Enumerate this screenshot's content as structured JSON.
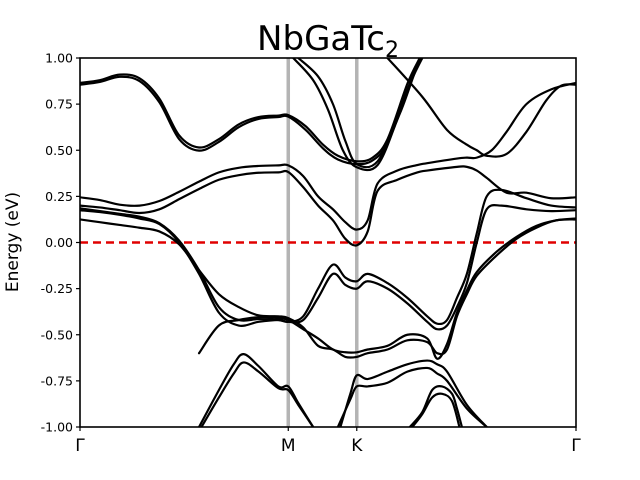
{
  "chart_data": {
    "type": "line",
    "title_main": "NbGaTc",
    "title_sub": "2",
    "xlabel": "",
    "ylabel": "Energy (eV)",
    "ylim": [
      -1.0,
      1.0
    ],
    "xlim": [
      0,
      1
    ],
    "ytick_labels": [
      "1.00",
      "0.75",
      "0.50",
      "0.25",
      "0.00",
      "-0.25",
      "-0.50",
      "-0.75",
      "-1.00"
    ],
    "ytick_values": [
      1.0,
      0.75,
      0.5,
      0.25,
      0.0,
      -0.25,
      -0.5,
      -0.75,
      -1.0
    ],
    "high_symmetry_points": [
      {
        "label": "Γ",
        "x": 0.0
      },
      {
        "label": "M",
        "x": 0.4199
      },
      {
        "label": "K",
        "x": 0.558
      },
      {
        "label": "Γ",
        "x": 1.0
      }
    ],
    "fermi_level": 0.0,
    "colors": {
      "bands": "#000000",
      "fermi": "#e00000",
      "kpath_lines": "#b4b4b4"
    },
    "series": [
      {
        "values": [
          [
            0.0,
            0.855
          ],
          [
            0.04,
            0.87
          ],
          [
            0.08,
            0.898
          ],
          [
            0.12,
            0.875
          ],
          [
            0.16,
            0.76
          ],
          [
            0.2,
            0.56
          ],
          [
            0.24,
            0.498
          ],
          [
            0.28,
            0.545
          ],
          [
            0.32,
            0.625
          ],
          [
            0.36,
            0.67
          ],
          [
            0.4,
            0.68
          ],
          [
            0.42,
            0.682
          ],
          [
            0.455,
            0.61
          ],
          [
            0.49,
            0.51
          ],
          [
            0.52,
            0.45
          ],
          [
            0.558,
            0.425
          ],
          [
            0.59,
            0.445
          ],
          [
            0.62,
            0.54
          ],
          [
            0.66,
            0.83
          ],
          [
            0.69,
            1.0
          ]
        ]
      },
      {
        "values": [
          [
            0.0,
            0.865
          ],
          [
            0.04,
            0.88
          ],
          [
            0.08,
            0.91
          ],
          [
            0.12,
            0.89
          ],
          [
            0.16,
            0.78
          ],
          [
            0.2,
            0.58
          ],
          [
            0.24,
            0.515
          ],
          [
            0.28,
            0.56
          ],
          [
            0.32,
            0.64
          ],
          [
            0.36,
            0.68
          ],
          [
            0.4,
            0.688
          ],
          [
            0.42,
            0.69
          ],
          [
            0.455,
            0.63
          ],
          [
            0.49,
            0.53
          ],
          [
            0.52,
            0.47
          ],
          [
            0.558,
            0.44
          ],
          [
            0.59,
            0.46
          ],
          [
            0.62,
            0.56
          ],
          [
            0.66,
            0.86
          ],
          [
            0.685,
            1.0
          ]
        ]
      },
      {
        "values": [
          [
            0.43,
            1.0
          ],
          [
            0.47,
            0.88
          ],
          [
            0.5,
            0.72
          ],
          [
            0.53,
            0.5
          ],
          [
            0.558,
            0.408
          ],
          [
            0.6,
            0.42
          ],
          [
            0.64,
            0.67
          ],
          [
            0.67,
            0.9
          ],
          [
            0.685,
            1.0
          ]
        ]
      },
      {
        "values": [
          [
            0.44,
            1.0
          ],
          [
            0.48,
            0.9
          ],
          [
            0.51,
            0.75
          ],
          [
            0.535,
            0.55
          ],
          [
            0.558,
            0.425
          ],
          [
            0.6,
            0.44
          ],
          [
            0.645,
            0.7
          ],
          [
            0.675,
            0.92
          ],
          [
            0.69,
            1.0
          ]
        ]
      },
      {
        "values": [
          [
            0.62,
            1.0
          ],
          [
            0.69,
            0.79
          ],
          [
            0.74,
            0.61
          ],
          [
            0.78,
            0.53
          ],
          [
            0.8,
            0.5
          ],
          [
            0.82,
            0.47
          ],
          [
            0.86,
            0.48
          ],
          [
            0.9,
            0.6
          ],
          [
            0.94,
            0.77
          ],
          [
            0.97,
            0.85
          ],
          [
            1.0,
            0.855
          ]
        ]
      },
      {
        "values": [
          [
            0.0,
            0.245
          ],
          [
            0.04,
            0.23
          ],
          [
            0.08,
            0.205
          ],
          [
            0.12,
            0.2
          ],
          [
            0.16,
            0.225
          ],
          [
            0.2,
            0.275
          ],
          [
            0.24,
            0.33
          ],
          [
            0.28,
            0.38
          ],
          [
            0.32,
            0.405
          ],
          [
            0.36,
            0.415
          ],
          [
            0.4,
            0.418
          ],
          [
            0.42,
            0.418
          ],
          [
            0.45,
            0.36
          ],
          [
            0.48,
            0.25
          ],
          [
            0.51,
            0.18
          ],
          [
            0.535,
            0.11
          ],
          [
            0.558,
            0.07
          ],
          [
            0.58,
            0.12
          ],
          [
            0.6,
            0.32
          ],
          [
            0.64,
            0.39
          ],
          [
            0.68,
            0.42
          ],
          [
            0.7,
            0.43
          ],
          [
            0.76,
            0.455
          ],
          [
            0.78,
            0.46
          ],
          [
            0.8,
            0.46
          ],
          [
            0.83,
            0.5
          ],
          [
            0.86,
            0.6
          ],
          [
            0.9,
            0.75
          ],
          [
            0.95,
            0.83
          ],
          [
            1.0,
            0.865
          ]
        ]
      },
      {
        "values": [
          [
            0.0,
            0.2
          ],
          [
            0.04,
            0.19
          ],
          [
            0.08,
            0.175
          ],
          [
            0.12,
            0.16
          ],
          [
            0.16,
            0.18
          ],
          [
            0.2,
            0.235
          ],
          [
            0.24,
            0.29
          ],
          [
            0.28,
            0.34
          ],
          [
            0.32,
            0.365
          ],
          [
            0.36,
            0.378
          ],
          [
            0.4,
            0.38
          ],
          [
            0.42,
            0.382
          ],
          [
            0.45,
            0.3
          ],
          [
            0.48,
            0.2
          ],
          [
            0.51,
            0.12
          ],
          [
            0.535,
            0.02
          ],
          [
            0.558,
            -0.015
          ],
          [
            0.58,
            0.06
          ],
          [
            0.6,
            0.28
          ],
          [
            0.64,
            0.34
          ],
          [
            0.68,
            0.38
          ],
          [
            0.7,
            0.39
          ],
          [
            0.76,
            0.41
          ],
          [
            0.78,
            0.41
          ],
          [
            0.8,
            0.39
          ],
          [
            0.82,
            0.35
          ],
          [
            0.86,
            0.27
          ],
          [
            0.9,
            0.27
          ],
          [
            0.95,
            0.24
          ],
          [
            1.0,
            0.245
          ]
        ]
      },
      {
        "values": [
          [
            0.0,
            0.185
          ],
          [
            0.04,
            0.17
          ],
          [
            0.08,
            0.155
          ],
          [
            0.12,
            0.14
          ],
          [
            0.16,
            0.105
          ],
          [
            0.2,
            0.01
          ],
          [
            0.24,
            -0.15
          ],
          [
            0.28,
            -0.35
          ],
          [
            0.32,
            -0.42
          ],
          [
            0.36,
            -0.415
          ],
          [
            0.4,
            -0.42
          ],
          [
            0.42,
            -0.43
          ],
          [
            0.45,
            -0.4
          ],
          [
            0.48,
            -0.25
          ],
          [
            0.51,
            -0.12
          ],
          [
            0.535,
            -0.19
          ],
          [
            0.558,
            -0.21
          ],
          [
            0.58,
            -0.17
          ],
          [
            0.62,
            -0.22
          ],
          [
            0.66,
            -0.3
          ],
          [
            0.7,
            -0.4
          ],
          [
            0.72,
            -0.44
          ],
          [
            0.74,
            -0.42
          ],
          [
            0.76,
            -0.3
          ],
          [
            0.78,
            -0.17
          ],
          [
            0.8,
            0.05
          ],
          [
            0.82,
            0.25
          ],
          [
            0.85,
            0.285
          ],
          [
            0.9,
            0.24
          ],
          [
            0.95,
            0.2
          ],
          [
            1.0,
            0.19
          ]
        ]
      },
      {
        "values": [
          [
            0.0,
            0.175
          ],
          [
            0.04,
            0.165
          ],
          [
            0.08,
            0.15
          ],
          [
            0.12,
            0.13
          ],
          [
            0.16,
            0.1
          ],
          [
            0.2,
            0.0
          ],
          [
            0.24,
            -0.17
          ],
          [
            0.28,
            -0.38
          ],
          [
            0.32,
            -0.45
          ],
          [
            0.36,
            -0.43
          ],
          [
            0.4,
            -0.42
          ],
          [
            0.42,
            -0.43
          ],
          [
            0.45,
            -0.42
          ],
          [
            0.48,
            -0.3
          ],
          [
            0.51,
            -0.17
          ],
          [
            0.535,
            -0.23
          ],
          [
            0.558,
            -0.25
          ],
          [
            0.58,
            -0.21
          ],
          [
            0.62,
            -0.25
          ],
          [
            0.66,
            -0.33
          ],
          [
            0.7,
            -0.43
          ],
          [
            0.72,
            -0.47
          ],
          [
            0.74,
            -0.45
          ],
          [
            0.76,
            -0.35
          ],
          [
            0.78,
            -0.22
          ],
          [
            0.8,
            0.0
          ],
          [
            0.82,
            0.18
          ],
          [
            0.85,
            0.2
          ],
          [
            0.9,
            0.18
          ],
          [
            0.95,
            0.17
          ],
          [
            1.0,
            0.175
          ]
        ]
      },
      {
        "values": [
          [
            0.0,
            0.125
          ],
          [
            0.04,
            0.11
          ],
          [
            0.08,
            0.095
          ],
          [
            0.12,
            0.08
          ],
          [
            0.16,
            0.06
          ],
          [
            0.2,
            -0.01
          ],
          [
            0.24,
            -0.15
          ],
          [
            0.28,
            -0.28
          ],
          [
            0.32,
            -0.35
          ],
          [
            0.36,
            -0.395
          ],
          [
            0.4,
            -0.4
          ],
          [
            0.42,
            -0.41
          ],
          [
            0.45,
            -0.46
          ],
          [
            0.48,
            -0.56
          ],
          [
            0.51,
            -0.58
          ],
          [
            0.535,
            -0.62
          ],
          [
            0.558,
            -0.62
          ],
          [
            0.58,
            -0.6
          ],
          [
            0.62,
            -0.58
          ],
          [
            0.66,
            -0.53
          ],
          [
            0.7,
            -0.54
          ],
          [
            0.72,
            -0.6
          ],
          [
            0.74,
            -0.58
          ],
          [
            0.76,
            -0.4
          ],
          [
            0.78,
            -0.28
          ],
          [
            0.8,
            -0.18
          ],
          [
            0.84,
            -0.07
          ],
          [
            0.88,
            0.02
          ],
          [
            0.92,
            0.08
          ],
          [
            0.96,
            0.12
          ],
          [
            1.0,
            0.125
          ]
        ]
      },
      {
        "values": [
          [
            0.24,
            -0.6
          ],
          [
            0.28,
            -0.45
          ],
          [
            0.32,
            -0.42
          ],
          [
            0.36,
            -0.405
          ],
          [
            0.4,
            -0.41
          ],
          [
            0.42,
            -0.42
          ],
          [
            0.45,
            -0.47
          ],
          [
            0.48,
            -0.52
          ],
          [
            0.51,
            -0.58
          ],
          [
            0.535,
            -0.595
          ],
          [
            0.558,
            -0.595
          ],
          [
            0.58,
            -0.58
          ],
          [
            0.62,
            -0.56
          ],
          [
            0.66,
            -0.5
          ],
          [
            0.7,
            -0.52
          ],
          [
            0.72,
            -0.63
          ],
          [
            0.74,
            -0.55
          ],
          [
            0.76,
            -0.38
          ],
          [
            0.78,
            -0.26
          ],
          [
            0.8,
            -0.16
          ],
          [
            0.84,
            -0.05
          ],
          [
            0.88,
            0.03
          ],
          [
            0.92,
            0.09
          ],
          [
            0.96,
            0.12
          ],
          [
            1.0,
            0.13
          ]
        ]
      },
      {
        "values": [
          [
            0.245,
            -1.0
          ],
          [
            0.28,
            -0.84
          ],
          [
            0.31,
            -0.71
          ],
          [
            0.33,
            -0.65
          ],
          [
            0.36,
            -0.7
          ],
          [
            0.4,
            -0.79
          ],
          [
            0.42,
            -0.8
          ],
          [
            0.44,
            -0.88
          ],
          [
            0.47,
            -1.0
          ]
        ]
      },
      {
        "values": [
          [
            0.24,
            -1.0
          ],
          [
            0.28,
            -0.8
          ],
          [
            0.31,
            -0.66
          ],
          [
            0.33,
            -0.605
          ],
          [
            0.36,
            -0.67
          ],
          [
            0.4,
            -0.78
          ],
          [
            0.42,
            -0.78
          ],
          [
            0.44,
            -0.87
          ],
          [
            0.47,
            -1.0
          ]
        ]
      },
      {
        "values": [
          [
            0.525,
            -1.0
          ],
          [
            0.545,
            -0.82
          ],
          [
            0.558,
            -0.72
          ],
          [
            0.58,
            -0.74
          ],
          [
            0.62,
            -0.7
          ],
          [
            0.66,
            -0.66
          ],
          [
            0.7,
            -0.64
          ],
          [
            0.72,
            -0.66
          ],
          [
            0.74,
            -0.7
          ],
          [
            0.78,
            -0.88
          ],
          [
            0.82,
            -1.0
          ]
        ]
      },
      {
        "values": [
          [
            0.52,
            -1.0
          ],
          [
            0.545,
            -0.85
          ],
          [
            0.558,
            -0.78
          ],
          [
            0.58,
            -0.78
          ],
          [
            0.62,
            -0.76
          ],
          [
            0.66,
            -0.7
          ],
          [
            0.7,
            -0.68
          ],
          [
            0.72,
            -0.71
          ],
          [
            0.74,
            -0.75
          ],
          [
            0.78,
            -0.9
          ],
          [
            0.82,
            -1.0
          ]
        ]
      },
      {
        "values": [
          [
            0.665,
            -1.0
          ],
          [
            0.69,
            -0.92
          ],
          [
            0.71,
            -0.8
          ],
          [
            0.73,
            -0.78
          ],
          [
            0.75,
            -0.82
          ],
          [
            0.76,
            -0.9
          ],
          [
            0.77,
            -1.0
          ]
        ]
      },
      {
        "values": [
          [
            0.67,
            -1.0
          ],
          [
            0.69,
            -0.93
          ],
          [
            0.71,
            -0.84
          ],
          [
            0.73,
            -0.82
          ],
          [
            0.75,
            -0.86
          ],
          [
            0.765,
            -1.0
          ]
        ]
      }
    ]
  }
}
